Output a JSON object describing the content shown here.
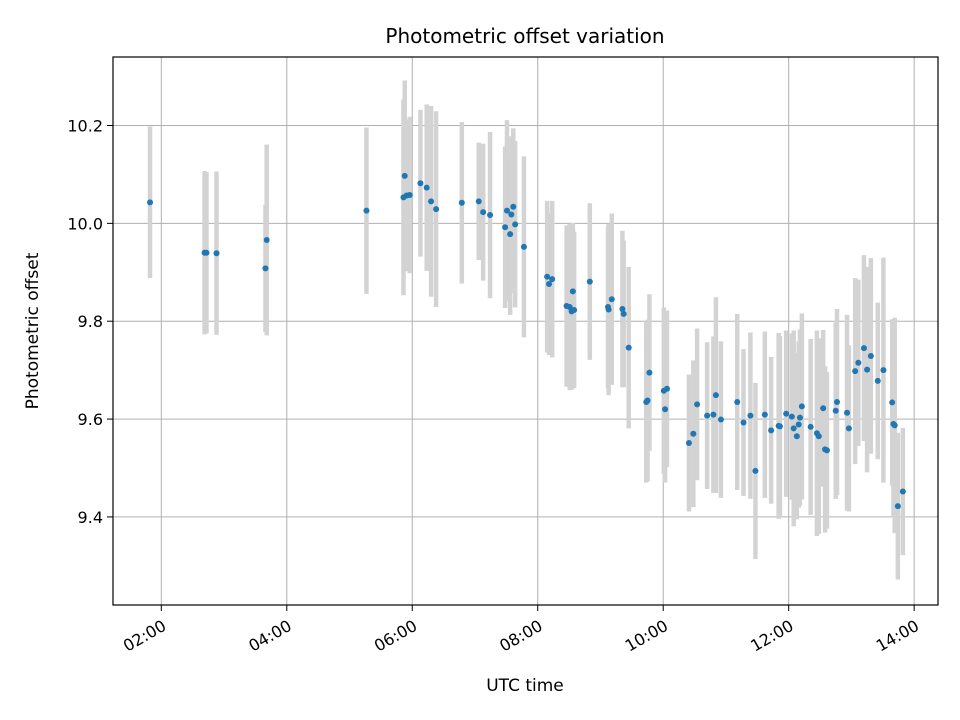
{
  "chart_data": {
    "type": "scatter",
    "title": "Photometric offset variation",
    "xlabel": "UTC time",
    "ylabel": "Photometric offset",
    "x_tick_labels": [
      "02:00",
      "04:00",
      "06:00",
      "08:00",
      "10:00",
      "12:00",
      "14:00"
    ],
    "y_tick_labels": [
      "9.4",
      "9.6",
      "9.8",
      "10.0",
      "10.2"
    ],
    "x_ticks_hours": [
      2,
      4,
      6,
      8,
      10,
      12,
      14
    ],
    "y_ticks": [
      9.4,
      9.6,
      9.8,
      10.0,
      10.2
    ],
    "xlim_hours": [
      1.23,
      14.38
    ],
    "ylim": [
      9.22,
      10.34
    ],
    "grid": true,
    "colors": {
      "point": "#1f77b4",
      "errorbar": "#d3d3d3",
      "grid": "#b0b0b0",
      "axis": "#000000"
    },
    "series": [
      {
        "x_hours": [
          1.82,
          2.69,
          2.72,
          2.88,
          3.66,
          3.68,
          5.27,
          5.86,
          5.88,
          5.91,
          5.96,
          6.13,
          6.23,
          6.3,
          6.38,
          6.79,
          7.06,
          7.13,
          7.24,
          7.48,
          7.51,
          7.56,
          7.58,
          7.61,
          7.64,
          7.78,
          8.15,
          8.18,
          8.23,
          8.46,
          8.51,
          8.54,
          8.56,
          8.58,
          8.83,
          9.12,
          9.13,
          9.18,
          9.35,
          9.37,
          9.45,
          9.73,
          9.75,
          9.78,
          10.01,
          10.03,
          10.06,
          10.41,
          10.48,
          10.54,
          10.7,
          10.8,
          10.84,
          10.92,
          11.18,
          11.28,
          11.39,
          11.47,
          11.62,
          11.72,
          11.84,
          11.86,
          11.96,
          12.05,
          12.08,
          12.13,
          12.16,
          12.18,
          12.21,
          12.35,
          12.45,
          12.48,
          12.55,
          12.58,
          12.61,
          12.75,
          12.77,
          12.93,
          12.96,
          13.06,
          13.11,
          13.2,
          13.25,
          13.31,
          13.42,
          13.51,
          13.65,
          13.67,
          13.69,
          13.74,
          13.82
        ],
        "y": [
          10.043,
          9.94,
          9.94,
          9.939,
          9.908,
          9.966,
          10.026,
          10.053,
          10.097,
          10.057,
          10.058,
          10.082,
          10.073,
          10.045,
          10.029,
          10.042,
          10.045,
          10.023,
          10.017,
          9.992,
          10.026,
          9.978,
          10.018,
          10.034,
          9.998,
          9.952,
          9.891,
          9.876,
          9.886,
          9.831,
          9.829,
          9.82,
          9.861,
          9.823,
          9.881,
          9.829,
          9.824,
          9.845,
          9.825,
          9.815,
          9.746,
          9.635,
          9.638,
          9.695,
          9.658,
          9.62,
          9.662,
          9.551,
          9.57,
          9.63,
          9.607,
          9.609,
          9.649,
          9.599,
          9.635,
          9.593,
          9.607,
          9.494,
          9.609,
          9.577,
          9.586,
          9.585,
          9.611,
          9.605,
          9.581,
          9.565,
          9.589,
          9.603,
          9.626,
          9.584,
          9.571,
          9.565,
          9.622,
          9.538,
          9.536,
          9.617,
          9.635,
          9.613,
          9.581,
          9.698,
          9.715,
          9.745,
          9.701,
          9.729,
          9.678,
          9.7,
          9.634,
          9.59,
          9.587,
          9.422,
          9.452
        ],
        "yerr": [
          0.155,
          0.167,
          0.165,
          0.167,
          0.13,
          0.195,
          0.17,
          0.2,
          0.195,
          0.155,
          0.16,
          0.15,
          0.17,
          0.195,
          0.2,
          0.165,
          0.12,
          0.14,
          0.17,
          0.165,
          0.185,
          0.165,
          0.16,
          0.16,
          0.17,
          0.185,
          0.155,
          0.145,
          0.16,
          0.165,
          0.17,
          0.16,
          0.14,
          0.16,
          0.16,
          0.165,
          0.175,
          0.175,
          0.16,
          0.15,
          0.165,
          0.165,
          0.165,
          0.16,
          0.17,
          0.15,
          0.16,
          0.14,
          0.15,
          0.155,
          0.15,
          0.16,
          0.2,
          0.16,
          0.18,
          0.15,
          0.17,
          0.18,
          0.17,
          0.15,
          0.19,
          0.185,
          0.17,
          0.17,
          0.2,
          0.17,
          0.17,
          0.18,
          0.19,
          0.18,
          0.21,
          0.2,
          0.16,
          0.17,
          0.16,
          0.18,
          0.19,
          0.2,
          0.17,
          0.19,
          0.17,
          0.19,
          0.21,
          0.2,
          0.16,
          0.23,
          0.17,
          0.19,
          0.22,
          0.15,
          0.13
        ]
      }
    ]
  }
}
